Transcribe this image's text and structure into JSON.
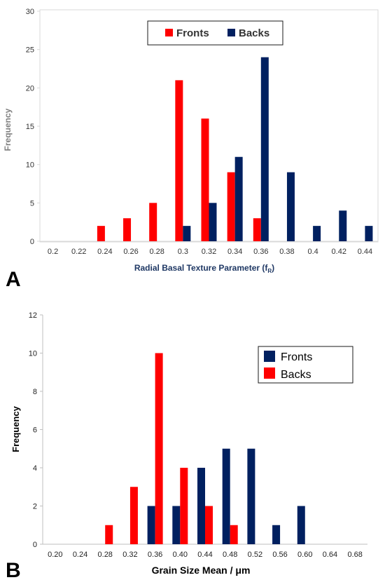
{
  "panels": [
    "A",
    "B"
  ],
  "chart_data": [
    {
      "type": "bar",
      "panel_label": "A",
      "xlabel_main": "Radial Basal Texture Parameter (f",
      "xlabel_sub": "R",
      "xlabel_close": ")",
      "ylabel": "Frequency",
      "categories": [
        "0.2",
        "0.22",
        "0.24",
        "0.26",
        "0.28",
        "0.3",
        "0.32",
        "0.34",
        "0.36",
        "0.38",
        "0.4",
        "0.42",
        "0.44"
      ],
      "ylim": [
        0,
        30
      ],
      "yticks": [
        "0",
        "5",
        "10",
        "15",
        "20",
        "25",
        "30"
      ],
      "legend_position": "top-center",
      "series": [
        {
          "name": "Fronts",
          "color": "#ff0000",
          "values": [
            0,
            0,
            2,
            3,
            5,
            21,
            16,
            9,
            3,
            0,
            0,
            0,
            0
          ]
        },
        {
          "name": "Backs",
          "color": "#002060",
          "values": [
            0,
            0,
            0,
            0,
            0,
            2,
            5,
            11,
            24,
            9,
            2,
            4,
            2
          ]
        }
      ]
    },
    {
      "type": "bar",
      "panel_label": "B",
      "xlabel": "Grain Size Mean / μm",
      "ylabel": "Frequency",
      "categories": [
        "0.20",
        "0.24",
        "0.28",
        "0.32",
        "0.36",
        "0.40",
        "0.44",
        "0.48",
        "0.52",
        "0.56",
        "0.60",
        "0.64",
        "0.68"
      ],
      "ylim": [
        0,
        12
      ],
      "yticks": [
        "0",
        "2",
        "4",
        "6",
        "8",
        "10",
        "12"
      ],
      "legend_position": "top-right",
      "series": [
        {
          "name": "Fronts",
          "color": "#002060",
          "values": [
            0,
            0,
            0,
            0,
            2,
            2,
            4,
            5,
            5,
            1,
            2,
            0,
            0
          ]
        },
        {
          "name": "Backs",
          "color": "#ff0000",
          "values": [
            0,
            0,
            1,
            3,
            10,
            4,
            2,
            1,
            0,
            0,
            0,
            0,
            0
          ]
        }
      ]
    }
  ]
}
